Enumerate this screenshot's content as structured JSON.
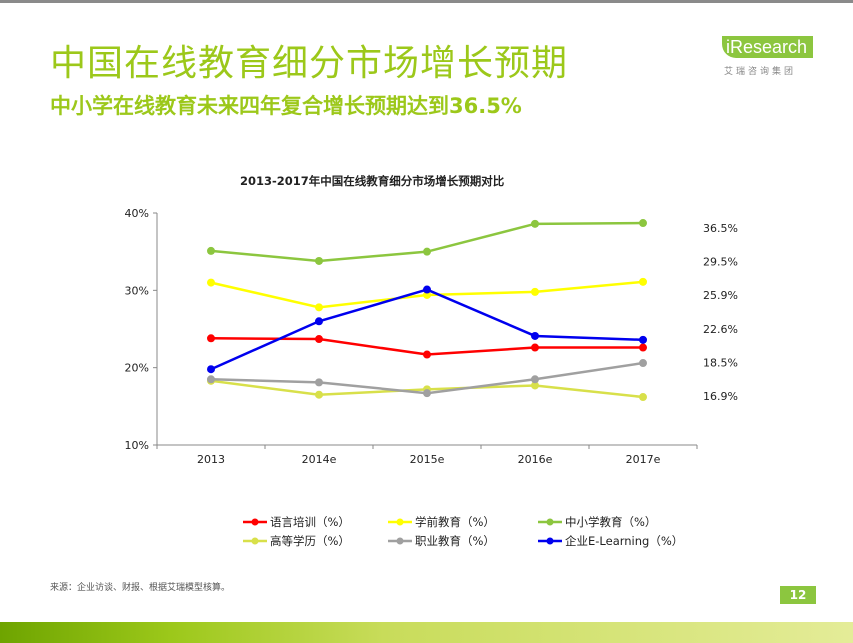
{
  "header": {
    "title": "中国在线教育细分市场增长预期",
    "subtitle": "中小学在线教育未来四年复合增长预期达到36.5%"
  },
  "logo": {
    "brand": "iResearch",
    "tagline": "艾瑞咨询集团"
  },
  "chart_data": {
    "type": "line",
    "title": "2013-2017年中国在线教育细分市场增长预期对比",
    "categories": [
      "2013",
      "2014e",
      "2015e",
      "2016e",
      "2017e"
    ],
    "ylim": [
      10,
      40
    ],
    "y_ticks": [
      "10%",
      "20%",
      "30%",
      "40%"
    ],
    "grid": false,
    "legend_position": "bottom",
    "right_labels": [
      "36.5%",
      "29.5%",
      "25.9%",
      "22.6%",
      "18.5%",
      "16.9%"
    ],
    "series": [
      {
        "name": "语言培训（%）",
        "color": "#ff0000",
        "values": [
          23.8,
          23.7,
          21.7,
          22.6,
          22.6
        ]
      },
      {
        "name": "学前教育（%）",
        "color": "#ffff00",
        "values": [
          31.0,
          27.8,
          29.4,
          29.8,
          31.1
        ]
      },
      {
        "name": "中小学教育（%）",
        "color": "#8cc63f",
        "values": [
          35.1,
          33.8,
          35.0,
          38.6,
          38.7
        ]
      },
      {
        "name": "高等学历（%）",
        "color": "#d8e04a",
        "values": [
          18.3,
          16.5,
          17.2,
          17.7,
          16.2
        ]
      },
      {
        "name": "职业教育（%）",
        "color": "#a0a0a0",
        "values": [
          18.5,
          18.1,
          16.7,
          18.5,
          20.6
        ]
      },
      {
        "name": "企业E-Learning（%）",
        "color": "#0000ee",
        "values": [
          19.8,
          26.0,
          30.1,
          24.1,
          23.6
        ]
      }
    ]
  },
  "footer": {
    "source": "来源：企业访谈、财报、根据艾瑞模型核算。",
    "page_number": "12"
  }
}
